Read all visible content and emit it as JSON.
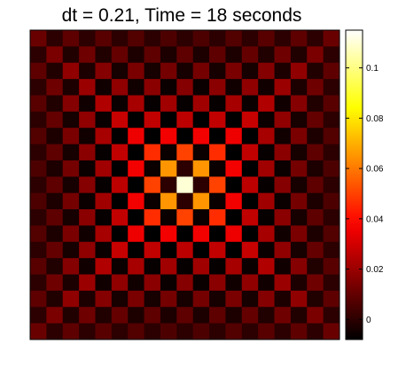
{
  "chart_data": {
    "type": "heatmap",
    "title": "dt = 0.21, Time = 18 seconds",
    "xlabel": "",
    "ylabel": "",
    "grid": false,
    "axes_ticks_visible": false,
    "colormap": "hot",
    "colormap_stops": [
      "#000000",
      "#ff0000",
      "#ffff00",
      "#ffffff"
    ],
    "rows": 19,
    "cols": 19,
    "value_range": [
      -0.008,
      0.115
    ],
    "peak": {
      "row": 9,
      "col": 9,
      "value": 0.11
    },
    "values": [
      [
        0.011,
        0.0,
        0.009,
        0.0,
        0.008,
        0.0,
        0.007,
        0.0,
        0.006,
        0.0,
        0.006,
        0.0,
        0.007,
        0.0,
        0.008,
        0.0,
        0.009,
        0.0,
        0.011
      ],
      [
        0.0,
        0.014,
        -0.002,
        0.012,
        -0.002,
        0.01,
        -0.003,
        0.009,
        -0.003,
        0.009,
        -0.003,
        0.009,
        -0.003,
        0.01,
        -0.002,
        0.012,
        -0.002,
        0.014,
        0.0
      ],
      [
        0.009,
        -0.002,
        0.018,
        -0.003,
        0.016,
        -0.004,
        0.014,
        -0.004,
        0.013,
        -0.004,
        0.013,
        -0.004,
        0.014,
        -0.004,
        0.016,
        -0.003,
        0.018,
        -0.002,
        0.009
      ],
      [
        0.0,
        0.012,
        -0.003,
        0.02,
        -0.005,
        0.018,
        -0.005,
        0.017,
        -0.006,
        0.016,
        -0.006,
        0.017,
        -0.005,
        0.018,
        -0.005,
        0.02,
        -0.003,
        0.012,
        0.0
      ],
      [
        0.008,
        -0.002,
        0.016,
        -0.005,
        0.024,
        -0.006,
        0.022,
        -0.007,
        0.021,
        -0.007,
        0.021,
        -0.007,
        0.022,
        -0.006,
        0.024,
        -0.005,
        0.016,
        -0.002,
        0.008
      ],
      [
        0.0,
        0.01,
        -0.004,
        0.018,
        -0.006,
        0.028,
        -0.008,
        0.027,
        -0.008,
        0.026,
        -0.008,
        0.027,
        -0.008,
        0.028,
        -0.006,
        0.018,
        -0.004,
        0.01,
        0.0
      ],
      [
        0.007,
        -0.003,
        0.014,
        -0.005,
        0.022,
        -0.008,
        0.035,
        -0.008,
        0.036,
        -0.008,
        0.036,
        -0.008,
        0.035,
        -0.008,
        0.022,
        -0.005,
        0.014,
        -0.003,
        0.007
      ],
      [
        0.0,
        0.009,
        -0.004,
        0.017,
        -0.007,
        0.027,
        -0.008,
        0.046,
        -0.006,
        0.05,
        -0.006,
        0.046,
        -0.008,
        0.027,
        -0.007,
        0.017,
        -0.004,
        0.009,
        0.0
      ],
      [
        0.006,
        -0.003,
        0.013,
        -0.006,
        0.021,
        -0.008,
        0.036,
        -0.006,
        0.065,
        0.0,
        0.065,
        -0.006,
        0.036,
        -0.008,
        0.021,
        -0.006,
        0.013,
        -0.003,
        0.006
      ],
      [
        0.0,
        0.009,
        -0.004,
        0.016,
        -0.007,
        0.026,
        -0.008,
        0.05,
        0.0,
        0.11,
        0.0,
        0.05,
        -0.008,
        0.026,
        -0.007,
        0.016,
        -0.004,
        0.009,
        0.0
      ],
      [
        0.006,
        -0.003,
        0.013,
        -0.006,
        0.021,
        -0.008,
        0.036,
        -0.006,
        0.065,
        0.0,
        0.065,
        -0.006,
        0.036,
        -0.008,
        0.021,
        -0.006,
        0.013,
        -0.003,
        0.006
      ],
      [
        0.0,
        0.009,
        -0.004,
        0.017,
        -0.007,
        0.027,
        -0.008,
        0.046,
        -0.006,
        0.05,
        -0.006,
        0.046,
        -0.008,
        0.027,
        -0.007,
        0.017,
        -0.004,
        0.009,
        0.0
      ],
      [
        0.007,
        -0.003,
        0.014,
        -0.005,
        0.022,
        -0.008,
        0.035,
        -0.008,
        0.036,
        -0.008,
        0.036,
        -0.008,
        0.035,
        -0.008,
        0.022,
        -0.005,
        0.014,
        -0.003,
        0.007
      ],
      [
        0.0,
        0.01,
        -0.004,
        0.018,
        -0.006,
        0.028,
        -0.008,
        0.027,
        -0.008,
        0.026,
        -0.008,
        0.027,
        -0.008,
        0.028,
        -0.006,
        0.018,
        -0.004,
        0.01,
        0.0
      ],
      [
        0.008,
        -0.002,
        0.016,
        -0.005,
        0.024,
        -0.006,
        0.022,
        -0.007,
        0.021,
        -0.007,
        0.021,
        -0.007,
        0.022,
        -0.006,
        0.024,
        -0.005,
        0.016,
        -0.002,
        0.008
      ],
      [
        0.0,
        0.012,
        -0.003,
        0.02,
        -0.005,
        0.018,
        -0.005,
        0.017,
        -0.006,
        0.016,
        -0.006,
        0.017,
        -0.005,
        0.018,
        -0.005,
        0.02,
        -0.003,
        0.012,
        0.0
      ],
      [
        0.009,
        -0.002,
        0.018,
        -0.003,
        0.016,
        -0.004,
        0.014,
        -0.004,
        0.013,
        -0.004,
        0.013,
        -0.004,
        0.014,
        -0.004,
        0.016,
        -0.003,
        0.018,
        -0.002,
        0.009
      ],
      [
        0.0,
        0.014,
        -0.002,
        0.012,
        -0.002,
        0.01,
        -0.003,
        0.009,
        -0.003,
        0.009,
        -0.003,
        0.009,
        -0.003,
        0.01,
        -0.002,
        0.012,
        -0.002,
        0.014,
        0.0
      ],
      [
        0.011,
        0.0,
        0.009,
        0.0,
        0.008,
        0.0,
        0.007,
        0.0,
        0.006,
        0.0,
        0.006,
        0.0,
        0.007,
        0.0,
        0.008,
        0.0,
        0.009,
        0.0,
        0.011
      ]
    ],
    "colorbar": {
      "range": [
        -0.008,
        0.115
      ],
      "ticks": [
        0,
        0.02,
        0.04,
        0.06,
        0.08,
        0.1
      ],
      "tick_labels": [
        "0",
        "0.02",
        "0.04",
        "0.06",
        "0.08",
        "0.1"
      ]
    }
  }
}
